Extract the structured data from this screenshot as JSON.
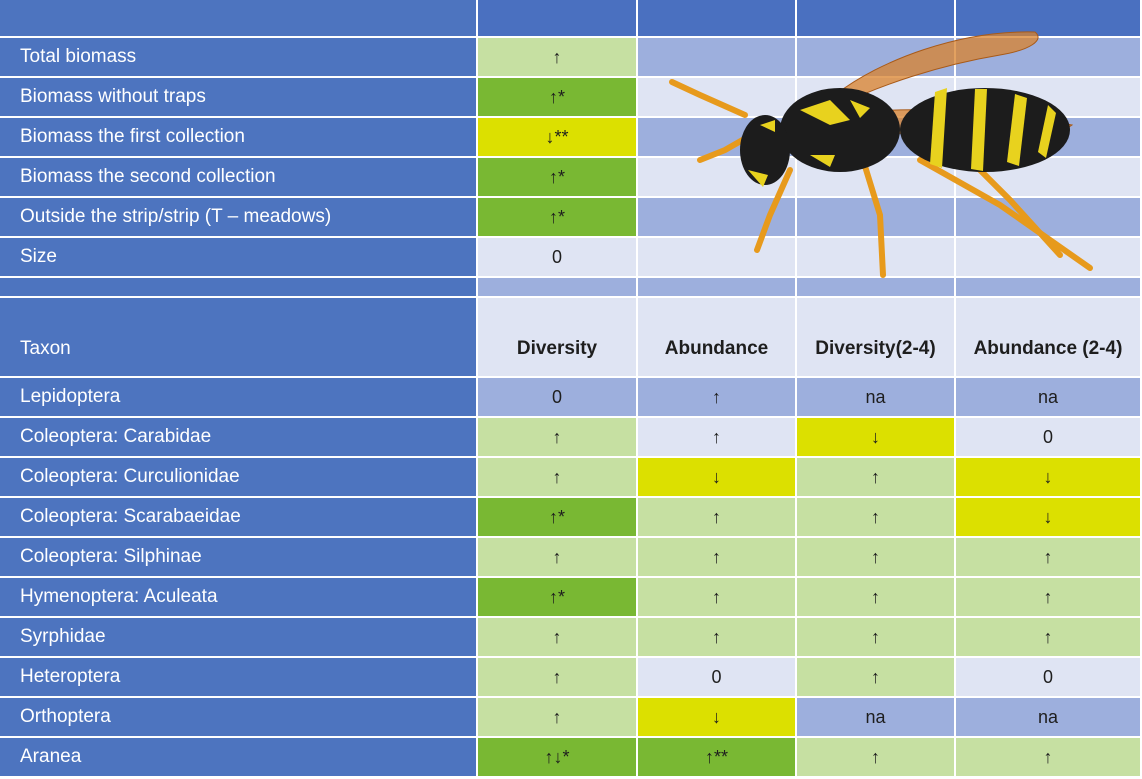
{
  "top_table": {
    "rows": [
      {
        "label": "Total biomass",
        "value": "↑",
        "color": "#c6e0a2"
      },
      {
        "label": "Biomass without traps",
        "value": "↑*",
        "color": "#79b833"
      },
      {
        "label": "Biomass the first collection",
        "value": "↓**",
        "color": "#dce000"
      },
      {
        "label": "Biomass the second collection",
        "value": "↑*",
        "color": "#79b833"
      },
      {
        "label": "Outside the strip/strip (T – meadows)",
        "value": "↑*",
        "color": "#79b833"
      },
      {
        "label": "Size",
        "value": "0",
        "color": "#dfe4f3"
      }
    ]
  },
  "taxon_table": {
    "header": [
      "Taxon",
      "Diversity",
      "Abundance",
      "Diversity(2-4)",
      "Abundance (2-4)"
    ],
    "rows": [
      {
        "label": "Lepidoptera",
        "values": [
          "0",
          "↑",
          "na",
          "na"
        ],
        "colors": [
          "#9dafdd",
          "#9dafdd",
          "#9dafdd",
          "#9dafdd"
        ]
      },
      {
        "label": "Coleoptera: Carabidae",
        "values": [
          "↑",
          "↑",
          "↓",
          "0"
        ],
        "colors": [
          "#c6e0a2",
          "#dfe4f3",
          "#dce000",
          "#dfe4f3"
        ]
      },
      {
        "label": "Coleoptera: Curculionidae",
        "values": [
          "↑",
          "↓",
          "↑",
          "↓"
        ],
        "colors": [
          "#c6e0a2",
          "#dce000",
          "#c6e0a2",
          "#dce000"
        ]
      },
      {
        "label": "Coleoptera: Scarabaeidae",
        "values": [
          "↑*",
          "↑",
          "↑",
          "↓"
        ],
        "colors": [
          "#79b833",
          "#c6e0a2",
          "#c6e0a2",
          "#dce000"
        ]
      },
      {
        "label": "Coleoptera: Silphinae",
        "values": [
          "↑",
          "↑",
          "↑",
          "↑"
        ],
        "colors": [
          "#c6e0a2",
          "#c6e0a2",
          "#c6e0a2",
          "#c6e0a2"
        ]
      },
      {
        "label": "Hymenoptera: Aculeata",
        "values": [
          "↑*",
          "↑",
          "↑",
          "↑"
        ],
        "colors": [
          "#79b833",
          "#c6e0a2",
          "#c6e0a2",
          "#c6e0a2"
        ]
      },
      {
        "label": "Syrphidae",
        "values": [
          "↑",
          "↑",
          "↑",
          "↑"
        ],
        "colors": [
          "#c6e0a2",
          "#c6e0a2",
          "#c6e0a2",
          "#c6e0a2"
        ]
      },
      {
        "label": "Heteroptera",
        "values": [
          "↑",
          "0",
          "↑",
          "0"
        ],
        "colors": [
          "#c6e0a2",
          "#dfe4f3",
          "#c6e0a2",
          "#dfe4f3"
        ]
      },
      {
        "label": "Orthoptera",
        "values": [
          "↑",
          "↓",
          "na",
          "na"
        ],
        "colors": [
          "#c6e0a2",
          "#dce000",
          "#9dafdd",
          "#9dafdd"
        ]
      },
      {
        "label": "Aranea",
        "values": [
          "↑↓*",
          "↑**",
          "↑",
          "↑"
        ],
        "colors": [
          "#79b833",
          "#79b833",
          "#c6e0a2",
          "#c6e0a2"
        ]
      }
    ]
  }
}
